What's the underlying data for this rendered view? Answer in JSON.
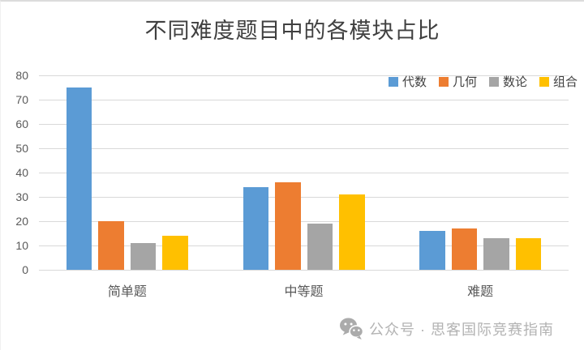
{
  "chart_data": {
    "type": "bar",
    "title": "不同难度题目中的各模块占比",
    "categories": [
      "简单题",
      "中等题",
      "难题"
    ],
    "series": [
      {
        "name": "代数",
        "color": "#5B9BD5",
        "values": [
          75,
          34,
          16
        ]
      },
      {
        "name": "几何",
        "color": "#ED7D31",
        "values": [
          20,
          36,
          17
        ]
      },
      {
        "name": "数论",
        "color": "#A5A5A5",
        "values": [
          11,
          19,
          13
        ]
      },
      {
        "name": "组合",
        "color": "#FFC000",
        "values": [
          14,
          31,
          13
        ]
      }
    ],
    "ylim": [
      0,
      80
    ],
    "yticks": [
      0,
      10,
      20,
      30,
      40,
      50,
      60,
      70,
      80
    ],
    "xlabel": "",
    "ylabel": "",
    "grid": true,
    "legend_position": "top-right"
  },
  "footer": {
    "icon": "wechat-icon",
    "text": "公众号 · 思客国际竞赛指南"
  },
  "colors": {
    "gridline": "#D9D9D9",
    "axis_text": "#595959",
    "title_text": "#404040",
    "footer_text": "#B3B3B3"
  }
}
